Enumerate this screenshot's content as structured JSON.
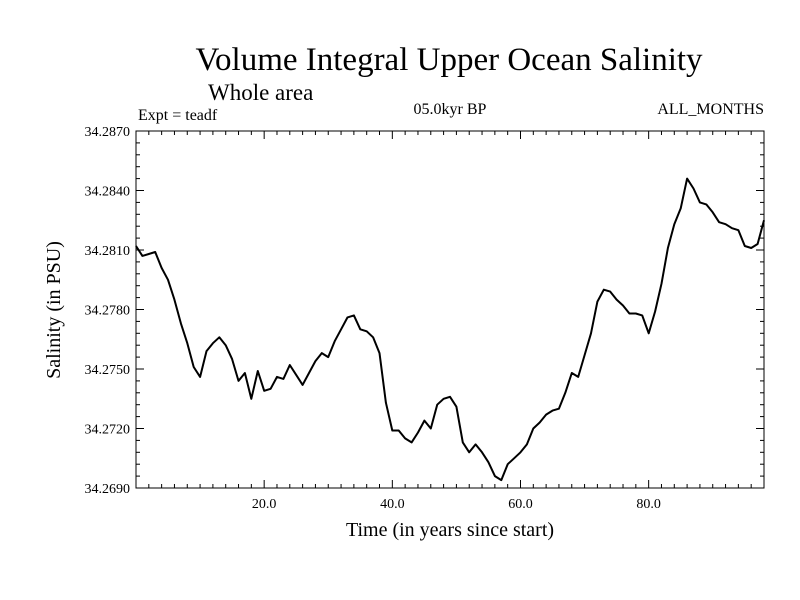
{
  "chart_data": {
    "type": "line",
    "title": "Volume Integral Upper Ocean Salinity",
    "subtitle": "Whole area",
    "experiment": "Expt = teadf",
    "period": "05.0kyr BP",
    "months": "ALL_MONTHS",
    "xlabel": "Time (in years since start)",
    "ylabel": "Salinity (in PSU)",
    "xlim": [
      0,
      98
    ],
    "ylim": [
      34.269,
      34.287
    ],
    "xticks": [
      20,
      40,
      60,
      80
    ],
    "xtick_labels": [
      "20.0",
      "40.0",
      "60.0",
      "80.0"
    ],
    "yticks": [
      34.269,
      34.272,
      34.275,
      34.278,
      34.281,
      34.284,
      34.287
    ],
    "ytick_labels": [
      "34.2690",
      "34.2720",
      "34.2750",
      "34.2780",
      "34.2810",
      "34.2840",
      "34.2870"
    ],
    "grid": false,
    "series": [
      {
        "name": "salinity",
        "x": [
          0,
          1,
          2,
          3,
          4,
          5,
          6,
          7,
          8,
          9,
          10,
          11,
          12,
          13,
          14,
          15,
          16,
          17,
          18,
          19,
          20,
          21,
          22,
          23,
          24,
          25,
          26,
          27,
          28,
          29,
          30,
          31,
          32,
          33,
          34,
          35,
          36,
          37,
          38,
          39,
          40,
          41,
          42,
          43,
          44,
          45,
          46,
          47,
          48,
          49,
          50,
          51,
          52,
          53,
          54,
          55,
          56,
          57,
          58,
          59,
          60,
          61,
          62,
          63,
          64,
          65,
          66,
          67,
          68,
          69,
          70,
          71,
          72,
          73,
          74,
          75,
          76,
          77,
          78,
          79,
          80,
          81,
          82,
          83,
          84,
          85,
          86,
          87,
          88,
          89,
          90,
          91,
          92,
          93,
          94,
          95,
          96,
          97,
          98
        ],
        "values": [
          34.2812,
          34.2807,
          34.2808,
          34.2809,
          34.2801,
          34.2795,
          34.2785,
          34.2773,
          34.2763,
          34.2751,
          34.2746,
          34.2759,
          34.2763,
          34.2766,
          34.2762,
          34.2755,
          34.2744,
          34.2748,
          34.2735,
          34.2749,
          34.2739,
          34.274,
          34.2746,
          34.2745,
          34.2752,
          34.2747,
          34.2742,
          34.2748,
          34.2754,
          34.2758,
          34.2756,
          34.2764,
          34.277,
          34.2776,
          34.2777,
          34.277,
          34.2769,
          34.2766,
          34.2758,
          34.2733,
          34.2719,
          34.2719,
          34.2715,
          34.2713,
          34.2718,
          34.2724,
          34.272,
          34.2732,
          34.2735,
          34.2736,
          34.2731,
          34.2713,
          34.2708,
          34.2712,
          34.2708,
          34.2703,
          34.2696,
          34.2694,
          34.2702,
          34.2705,
          34.2708,
          34.2712,
          34.272,
          34.2723,
          34.2727,
          34.2729,
          34.273,
          34.2738,
          34.2748,
          34.2746,
          34.2757,
          34.2768,
          34.2784,
          34.279,
          34.2789,
          34.2785,
          34.2782,
          34.2778,
          34.2778,
          34.2777,
          34.2768,
          34.2779,
          34.2793,
          34.2811,
          34.2823,
          34.2831,
          34.2846,
          34.2841,
          34.2834,
          34.2833,
          34.2829,
          34.2824,
          34.2823,
          34.2821,
          34.282,
          34.2812,
          34.2811,
          34.2813,
          34.2825
        ]
      }
    ]
  }
}
